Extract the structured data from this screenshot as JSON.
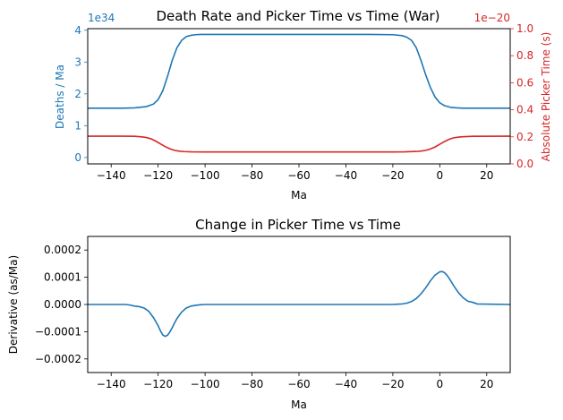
{
  "chart_data": [
    {
      "type": "line",
      "title": "Death Rate and Picker Time vs Time (War)",
      "xlabel": "Ma",
      "xlim": [
        -150,
        30
      ],
      "x_ticks": [
        -140,
        -120,
        -100,
        -80,
        -60,
        -40,
        -20,
        0,
        20
      ],
      "grid": false,
      "legend": "none",
      "left_axis": {
        "ylabel": "Deaths / Ma",
        "ylim": [
          -0.2,
          4.05
        ],
        "ticks": [
          0,
          1,
          2,
          3,
          4
        ],
        "offset_text": "1e34",
        "color": "#1f77b4"
      },
      "right_axis": {
        "ylabel": "Absolute Picker Time (s)",
        "ylim": [
          0.0,
          1.0
        ],
        "ticks": [
          0.0,
          0.2,
          0.4,
          0.6,
          0.8,
          1.0
        ],
        "offset_text": "1e−20",
        "color": "#d62728"
      },
      "series": [
        {
          "axis": "left",
          "color": "#1f77b4",
          "x": [
            -150,
            -135,
            -130,
            -125,
            -122,
            -120,
            -118,
            -116,
            -114,
            -112,
            -110,
            -108,
            -106,
            -104,
            -102,
            -100,
            -90,
            -60,
            -30,
            -20,
            -16,
            -14,
            -12,
            -10,
            -8,
            -6,
            -4,
            -2,
            0,
            2,
            5,
            10,
            15,
            30
          ],
          "values": [
            1.55,
            1.55,
            1.56,
            1.6,
            1.68,
            1.82,
            2.1,
            2.55,
            3.05,
            3.45,
            3.68,
            3.8,
            3.84,
            3.86,
            3.87,
            3.87,
            3.87,
            3.87,
            3.87,
            3.86,
            3.83,
            3.78,
            3.68,
            3.45,
            3.05,
            2.6,
            2.2,
            1.9,
            1.72,
            1.63,
            1.57,
            1.55,
            1.55,
            1.55
          ]
        },
        {
          "axis": "right",
          "color": "#d62728",
          "x": [
            -150,
            -135,
            -130,
            -127,
            -125,
            -123,
            -121,
            -119,
            -117,
            -115,
            -113,
            -111,
            -109,
            -106,
            -100,
            -60,
            -20,
            -15,
            -10,
            -8,
            -6,
            -4,
            -2,
            0,
            2,
            4,
            6,
            9,
            14,
            30
          ],
          "values": [
            0.205,
            0.205,
            0.204,
            0.2,
            0.195,
            0.185,
            0.168,
            0.148,
            0.128,
            0.112,
            0.1,
            0.094,
            0.091,
            0.089,
            0.088,
            0.088,
            0.088,
            0.089,
            0.092,
            0.095,
            0.1,
            0.11,
            0.125,
            0.145,
            0.165,
            0.182,
            0.193,
            0.2,
            0.204,
            0.205
          ]
        }
      ]
    },
    {
      "type": "line",
      "title": "Change in Picker Time vs Time",
      "xlabel": "Ma",
      "ylabel": "Derivative (as/Ma)",
      "xlim": [
        -150,
        30
      ],
      "ylim": [
        -0.00025,
        0.00025
      ],
      "x_ticks": [
        -140,
        -120,
        -100,
        -80,
        -60,
        -40,
        -20,
        0,
        20
      ],
      "y_ticks": [
        -0.0002,
        -0.0001,
        0.0,
        0.0001,
        0.0002
      ],
      "y_tick_labels": [
        "−0.0002",
        "−0.0001",
        "0.0000",
        "0.0001",
        "0.0002"
      ],
      "grid": false,
      "legend": "none",
      "series": [
        {
          "color": "#1f77b4",
          "x": [
            -150,
            -134,
            -132,
            -130,
            -128,
            -126,
            -124,
            -122,
            -120,
            -119,
            -118,
            -117,
            -116,
            -115,
            -114,
            -113,
            -112,
            -110,
            -108,
            -106,
            -104,
            -102,
            -100,
            -80,
            -40,
            -20,
            -18,
            -16,
            -14,
            -12,
            -10,
            -8,
            -6,
            -4,
            -2,
            0,
            1,
            2,
            3,
            4,
            6,
            8,
            10,
            12,
            14,
            16,
            30
          ],
          "values": [
            0,
            0,
            -2e-06,
            -6e-06,
            -8e-06,
            -1.3e-05,
            -2.5e-05,
            -4.8e-05,
            -7.8e-05,
            -9.7e-05,
            -0.000112,
            -0.000117,
            -0.000113,
            -0.000101,
            -8.5e-05,
            -6.8e-05,
            -5.2e-05,
            -2.8e-05,
            -1.3e-05,
            -6e-06,
            -3e-06,
            -1e-06,
            0,
            0,
            0,
            0,
            1e-06,
            2e-06,
            5e-06,
            1.1e-05,
            2.2e-05,
            3.9e-05,
            6.1e-05,
            8.7e-05,
            0.000108,
            0.00012,
            0.000121,
            0.000117,
            0.000108,
            9.6e-05,
            6.8e-05,
            4.3e-05,
            2.4e-05,
            1.2e-05,
            8e-06,
            2e-06,
            0
          ]
        }
      ]
    }
  ]
}
